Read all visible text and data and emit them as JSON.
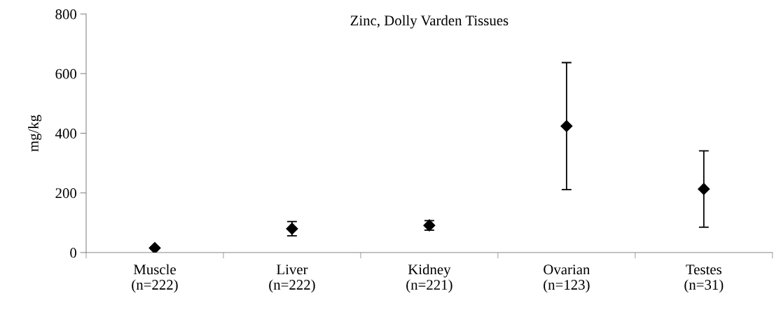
{
  "chart_data": {
    "type": "scatter",
    "title": "Zinc, Dolly Varden Tissues",
    "ylabel": "mg/kg",
    "categories": [
      "Muscle\n(n=222)",
      "Liver\n(n=222)",
      "Kidney\n(n=221)",
      "Ovarian\n(n=123)",
      "Testes\n(n=31)"
    ],
    "values": [
      15,
      80,
      91,
      424,
      213
    ],
    "errors": [
      null,
      24,
      16,
      213,
      128
    ],
    "color": "#000000",
    "marker": "diamond",
    "ylim": [
      0,
      800
    ],
    "yticks": [
      0,
      200,
      400,
      600,
      800
    ],
    "grid": false,
    "legend": false
  }
}
